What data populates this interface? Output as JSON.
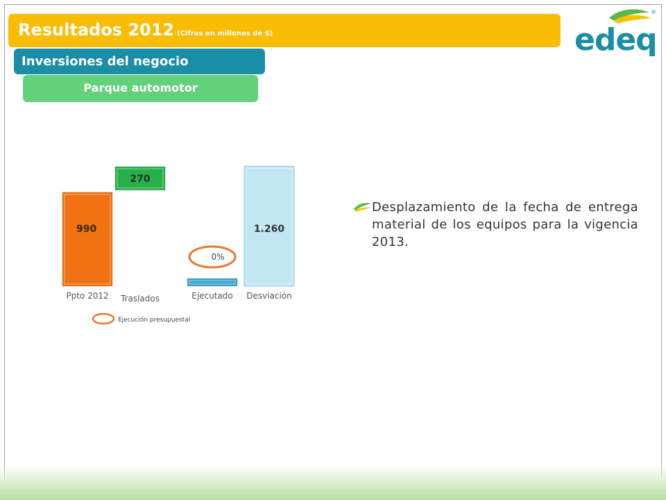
{
  "header": {
    "title": "Resultados 2012",
    "title_note": "(Cifras en millones de $)",
    "subtitle": "Inversiones del negocio",
    "section": "Parque automotor"
  },
  "logo": {
    "text": "edeq"
  },
  "colors": {
    "title_bg": "#fbbc05",
    "subtitle_bg": "#1a8ea6",
    "section_bg": "#63d07a",
    "logo": "#1a8ea6"
  },
  "chart_data": {
    "type": "bar",
    "categories": [
      "Ppto 2012",
      "Traslados",
      "Ejecutado",
      "Desviación"
    ],
    "values": [
      990,
      270,
      0,
      1260
    ],
    "value_labels": [
      "990",
      "270",
      "",
      "1.260"
    ],
    "colors": [
      "#f07213",
      "#27b04a",
      "#3ea7cc",
      "#c2e7f4"
    ],
    "annotations": [
      {
        "category": "Ejecutado",
        "text": "0%"
      }
    ],
    "legend": {
      "text": "Ejecución presupuestal",
      "position": "bottom"
    },
    "ylim": [
      0,
      1300
    ]
  },
  "bullet": {
    "text": "Desplazamiento de la fecha de entrega material de los equipos para la vigencia 2013."
  }
}
